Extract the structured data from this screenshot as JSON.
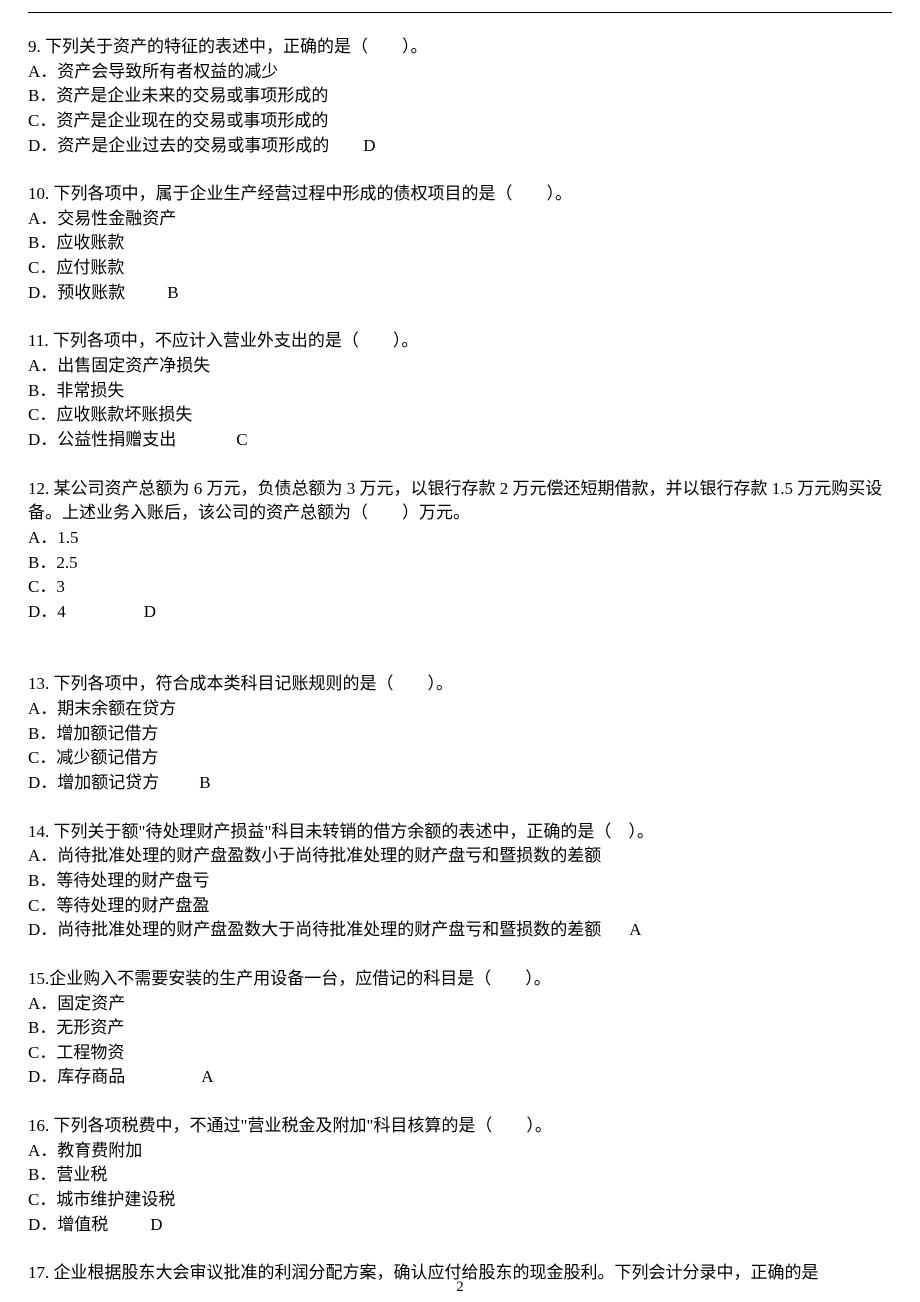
{
  "page_number": "2",
  "text_color": "#000000",
  "background_color": "#ffffff",
  "font_size_pt": 13,
  "questions": [
    {
      "num": "9.",
      "stem": "下列关于资产的特征的表述中，正确的是（　　）。",
      "options": [
        "A．资产会导致所有者权益的减少",
        "B．资产是企业未来的交易或事项形成的",
        "C．资产是企业现在的交易或事项形成的",
        "D．资产是企业过去的交易或事项形成的"
      ],
      "answer": "D",
      "answer_gap": 34
    },
    {
      "num": "10.",
      "stem": "下列各项中，属于企业生产经营过程中形成的债权项目的是（　　）。",
      "options": [
        "A．交易性金融资产",
        "B．应收账款",
        "C．应付账款",
        "D．预收账款"
      ],
      "answer": "B",
      "answer_gap": 42
    },
    {
      "num": "11.",
      "stem": "下列各项中，不应计入营业外支出的是（　　）。",
      "options": [
        "A．出售固定资产净损失",
        "B．非常损失",
        "C．应收账款坏账损失",
        "D．公益性捐赠支出"
      ],
      "answer": "C",
      "answer_gap": 60
    },
    {
      "num": "12.",
      "stem": "某公司资产总额为 6 万元，负债总额为 3 万元，以银行存款 2 万元偿还短期借款，并以银行存款 1.5 万元购买设备。上述业务入账后，该公司的资产总额为（　　）万元。",
      "options": [
        "A．1.5",
        "B．2.5",
        "C．3",
        "D．4"
      ],
      "answer": "D",
      "answer_gap": 78,
      "extra_bottom": true
    },
    {
      "num": "13.",
      "stem": "下列各项中，符合成本类科目记账规则的是（　　）。",
      "options": [
        "A．期末余额在贷方",
        "B．增加额记借方",
        "C．减少额记借方",
        "D．增加额记贷方"
      ],
      "answer": "B",
      "answer_gap": 40
    },
    {
      "num": "14.",
      "stem": "下列关于额\"待处理财产损益\"科目未转销的借方余额的表述中，正确的是（　）。",
      "options": [
        "A．尚待批准处理的财产盘盈数小于尚待批准处理的财产盘亏和暨损数的差额",
        "B．等待处理的财产盘亏",
        "C．等待处理的财产盘盈",
        "D．尚待批准处理的财产盘盈数大于尚待批准处理的财产盘亏和暨损数的差额"
      ],
      "answer": "A",
      "answer_gap": 28
    },
    {
      "num": "15.",
      "stem": "企业购入不需要安装的生产用设备一台，应借记的科目是（　　）。",
      "options": [
        "A．固定资产",
        "B．无形资产",
        "C．工程物资",
        "D．库存商品"
      ],
      "answer": "A",
      "answer_gap": 76,
      "no_space_after_num": true
    },
    {
      "num": "16.",
      "stem": "下列各项税费中，不通过\"营业税金及附加\"科目核算的是（　　）。",
      "options": [
        "A．教育费附加",
        "B．营业税",
        "C．城市维护建设税",
        "D．增值税"
      ],
      "answer": "D",
      "answer_gap": 42
    },
    {
      "num": "17.",
      "stem": "企业根据股东大会审议批准的利润分配方案，确认应付给股东的现金股利。下列会计分录中，正确的是",
      "options": [],
      "answer": "",
      "partial": true
    }
  ]
}
